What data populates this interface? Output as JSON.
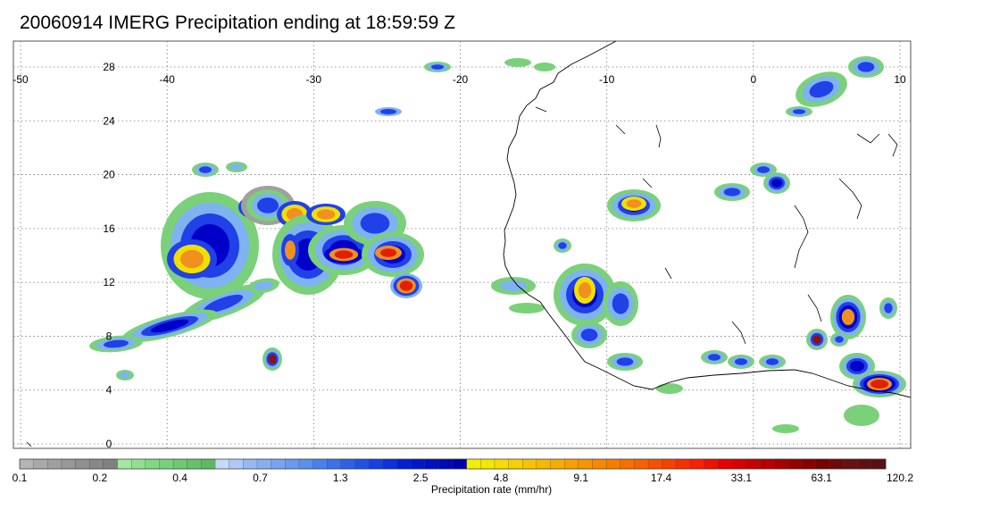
{
  "title": "20060914 IMERG Precipitation ending at 18:59:59 Z",
  "map": {
    "lon_range": [
      -50,
      10
    ],
    "lat_range": [
      -1,
      30
    ],
    "lon_labels": [
      "-50",
      "-40",
      "-30",
      "-20",
      "-10",
      "0",
      "10"
    ],
    "lat_labels": [
      "28",
      "24",
      "20",
      "16",
      "12",
      "8",
      "4",
      "0"
    ],
    "grid": "dotted",
    "colors": {
      "coastline": "#000000",
      "gray": "#a0a0a0",
      "green": "#7ad17a",
      "light_blue": "#7fb2f0",
      "blue": "#2040e8",
      "dark_blue": "#0000c8",
      "yellow": "#f0e000",
      "orange": "#f09020",
      "red": "#e02000",
      "dark_red": "#901010"
    }
  },
  "colorbar": {
    "label": "Precipitation rate (mm/hr)",
    "tick_labels": [
      "0.1",
      "0.2",
      "0.4",
      "0.7",
      "1.3",
      "2.5",
      "4.8",
      "9.1",
      "17.4",
      "33.1",
      "63.1",
      "120.2"
    ],
    "colors": [
      "#b4b4b4",
      "#a8a8a8",
      "#a0a0a0",
      "#989898",
      "#909090",
      "#888888",
      "#808080",
      "#a0e8a0",
      "#90e090",
      "#80d880",
      "#78d078",
      "#70c870",
      "#68c068",
      "#60b860",
      "#c8d8f8",
      "#b0c8f8",
      "#98b8f4",
      "#88aef2",
      "#78a4f0",
      "#689af0",
      "#5890ee",
      "#4a80ee",
      "#3c70ec",
      "#2e60ea",
      "#2050e8",
      "#1440e4",
      "#0a30e0",
      "#0020d8",
      "#0018cc",
      "#0010c0",
      "#0008b4",
      "#0000a8",
      "#f0f000",
      "#f4e800",
      "#f8dc00",
      "#f8d000",
      "#f8c400",
      "#f8b800",
      "#f8ac00",
      "#f8a000",
      "#f89400",
      "#f88800",
      "#f87c00",
      "#f87000",
      "#f86000",
      "#f85000",
      "#f84000",
      "#f83000",
      "#f82000",
      "#f01000",
      "#e80000",
      "#d80000",
      "#c80000",
      "#b80000",
      "#a80000",
      "#980000",
      "#880000",
      "#780000",
      "#700808",
      "#681010",
      "#601010",
      "#581010"
    ]
  }
}
